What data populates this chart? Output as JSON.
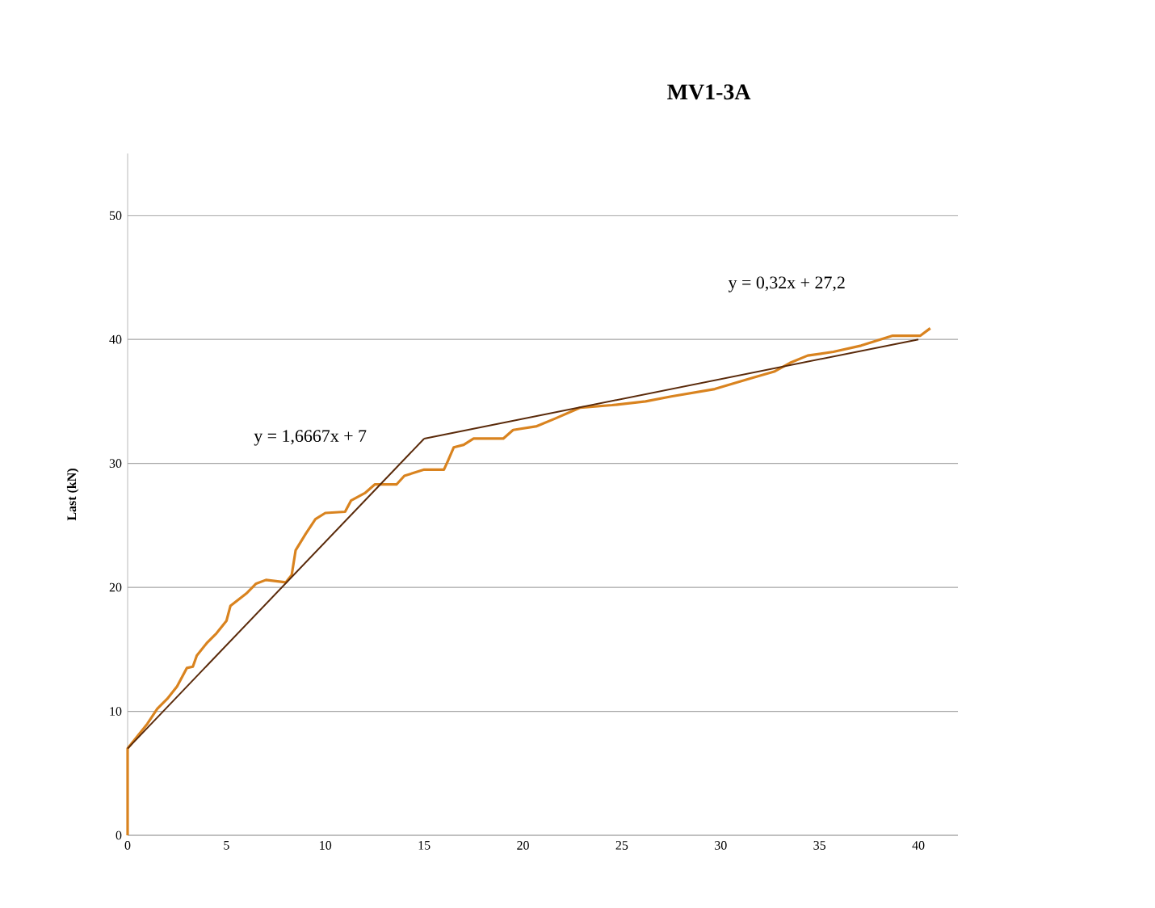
{
  "chart_data": {
    "type": "line",
    "title": "MV1-3A",
    "ylabel": "Last (kN)",
    "xlim": [
      0,
      42
    ],
    "ylim": [
      0,
      55
    ],
    "xticks": [
      0,
      5,
      10,
      15,
      20,
      25,
      30,
      35,
      40
    ],
    "yticks": [
      0,
      10,
      20,
      30,
      40,
      50
    ],
    "grid": "y",
    "legend": false,
    "marker": "none",
    "line_style": "solid",
    "series": [
      {
        "color": "#d9831f",
        "x": [
          0,
          0,
          0.5,
          1,
          1.5,
          2,
          2.5,
          3,
          3.3,
          3.5,
          4,
          4.5,
          5,
          5.2,
          6,
          6.5,
          7,
          7.5,
          8,
          8.3,
          8.5,
          9,
          9.5,
          10,
          11,
          11.3,
          12,
          12.5,
          13.6,
          14,
          15,
          16,
          16.2,
          16.5,
          17,
          17.5,
          19,
          19.5,
          20.7,
          21.6,
          22.9,
          24.5,
          26.2,
          27.5,
          29.7,
          31.6,
          32.7,
          33.5,
          34.4,
          35.7,
          37.1,
          38.7,
          40.1,
          40.6
        ],
        "values": [
          0,
          7,
          8,
          9,
          10.2,
          11,
          12,
          13.5,
          13.6,
          14.5,
          15.5,
          16.3,
          17.3,
          18.5,
          19.5,
          20.3,
          20.6,
          20.5,
          20.4,
          21,
          23,
          24.3,
          25.5,
          26,
          26.1,
          27,
          27.6,
          28.3,
          28.3,
          29,
          29.5,
          29.5,
          30.2,
          31.3,
          31.5,
          32,
          32,
          32.7,
          33,
          33.6,
          34.5,
          34.7,
          35,
          35.4,
          36,
          36.9,
          37.4,
          38.1,
          38.7,
          39,
          39.5,
          40.3,
          40.3,
          40.9
        ]
      },
      {
        "color": "#5a2a0a",
        "x": [
          0,
          15
        ],
        "values": [
          7,
          32
        ]
      },
      {
        "color": "#5a2a0a",
        "x": [
          15,
          40
        ],
        "values": [
          32,
          40
        ]
      }
    ],
    "annotations": [
      "y = 1,6667x + 7",
      "y = 0,32x + 27,2"
    ]
  }
}
